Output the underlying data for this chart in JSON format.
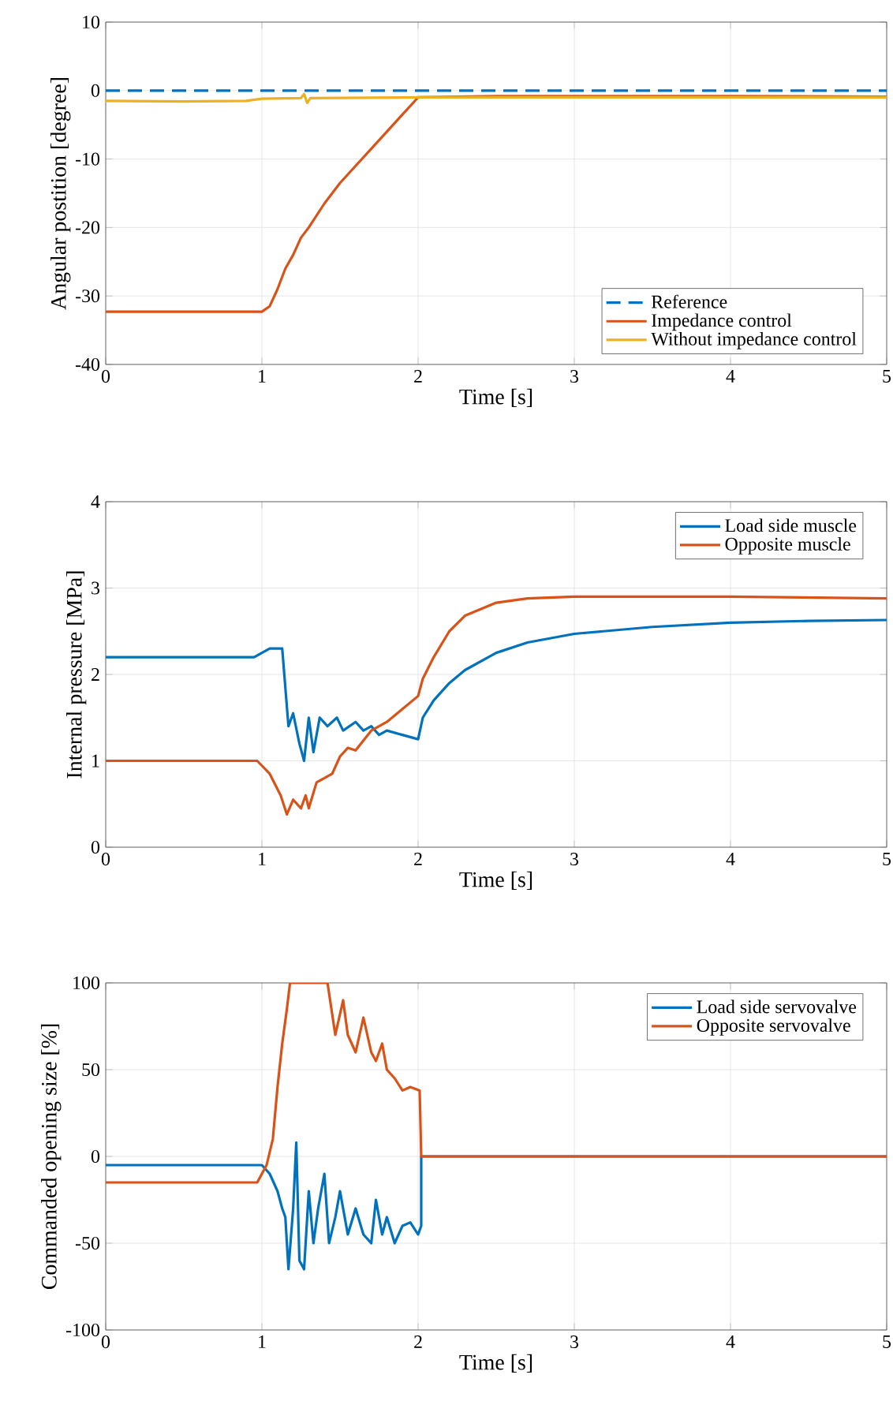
{
  "chart_data": [
    {
      "type": "line",
      "xlabel": "Time [s]",
      "ylabel": "Angular postition [degree]",
      "xlim": [
        0,
        5
      ],
      "ylim": [
        -40,
        10
      ],
      "xticks": [
        0,
        1,
        2,
        3,
        4,
        5
      ],
      "yticks": [
        -40,
        -30,
        -20,
        -10,
        0,
        10
      ],
      "grid": true,
      "legend": "bottom right",
      "series": [
        {
          "name": "Reference",
          "color": "#0072bd",
          "line_style": "dashed",
          "x": [
            0,
            5
          ],
          "values": [
            0,
            0
          ]
        },
        {
          "name": "Impedance control",
          "color": "#d95319",
          "line_style": "solid",
          "x": [
            0,
            1.0,
            1.05,
            1.1,
            1.15,
            1.2,
            1.25,
            1.3,
            1.4,
            1.5,
            1.6,
            1.7,
            1.8,
            1.9,
            2.0,
            2.5,
            3,
            4,
            5
          ],
          "values": [
            -32.3,
            -32.3,
            -31.5,
            -29,
            -26,
            -24,
            -21.5,
            -20,
            -16.5,
            -13.5,
            -11,
            -8.5,
            -6,
            -3.5,
            -1,
            -0.8,
            -0.8,
            -0.8,
            -0.9
          ]
        },
        {
          "name": "Without impedance control",
          "color": "#edb120",
          "line_style": "solid",
          "x": [
            0,
            0.5,
            0.9,
            1.0,
            1.25,
            1.27,
            1.29,
            1.31,
            2,
            3,
            5
          ],
          "values": [
            -1.5,
            -1.6,
            -1.5,
            -1.2,
            -1.1,
            -0.5,
            -1.8,
            -1.1,
            -1,
            -1,
            -1
          ]
        }
      ]
    },
    {
      "type": "line",
      "xlabel": "Time [s]",
      "ylabel": "Internal pressure [MPa]",
      "xlim": [
        0,
        5
      ],
      "ylim": [
        0,
        4
      ],
      "xticks": [
        0,
        1,
        2,
        3,
        4,
        5
      ],
      "yticks": [
        0,
        1,
        2,
        3,
        4
      ],
      "grid": true,
      "legend": "top right",
      "series": [
        {
          "name": "Load side muscle",
          "color": "#0072bd",
          "line_style": "solid",
          "x": [
            0,
            0.95,
            1.05,
            1.13,
            1.17,
            1.2,
            1.24,
            1.27,
            1.3,
            1.33,
            1.37,
            1.42,
            1.48,
            1.52,
            1.6,
            1.65,
            1.7,
            1.75,
            1.8,
            1.9,
            2.0,
            2.03,
            2.1,
            2.2,
            2.3,
            2.5,
            2.7,
            3.0,
            3.5,
            4,
            4.5,
            5
          ],
          "values": [
            2.2,
            2.2,
            2.3,
            2.3,
            1.4,
            1.55,
            1.2,
            1.0,
            1.5,
            1.1,
            1.5,
            1.4,
            1.5,
            1.35,
            1.45,
            1.35,
            1.4,
            1.3,
            1.35,
            1.3,
            1.25,
            1.5,
            1.7,
            1.9,
            2.05,
            2.25,
            2.37,
            2.47,
            2.55,
            2.6,
            2.62,
            2.63
          ]
        },
        {
          "name": "Opposite muscle",
          "color": "#d95319",
          "line_style": "solid",
          "x": [
            0,
            0.97,
            1.05,
            1.12,
            1.16,
            1.2,
            1.25,
            1.28,
            1.3,
            1.35,
            1.4,
            1.45,
            1.5,
            1.55,
            1.6,
            1.7,
            1.8,
            1.9,
            2.0,
            2.03,
            2.1,
            2.2,
            2.3,
            2.5,
            2.7,
            3,
            4,
            5
          ],
          "values": [
            1.0,
            1.0,
            0.85,
            0.6,
            0.38,
            0.55,
            0.45,
            0.6,
            0.45,
            0.75,
            0.8,
            0.85,
            1.05,
            1.15,
            1.12,
            1.35,
            1.45,
            1.6,
            1.75,
            1.95,
            2.2,
            2.5,
            2.68,
            2.83,
            2.88,
            2.9,
            2.9,
            2.88
          ]
        }
      ]
    },
    {
      "type": "line",
      "xlabel": "Time [s]",
      "ylabel": "Commanded opening size [%]",
      "xlim": [
        0,
        5
      ],
      "ylim": [
        -100,
        100
      ],
      "xticks": [
        0,
        1,
        2,
        3,
        4,
        5
      ],
      "yticks": [
        -100,
        -50,
        0,
        50,
        100
      ],
      "grid": true,
      "legend": "top right",
      "series": [
        {
          "name": "Load side servovalve",
          "color": "#0072bd",
          "line_style": "solid",
          "x": [
            0,
            0.95,
            1.0,
            1.05,
            1.1,
            1.13,
            1.15,
            1.17,
            1.2,
            1.22,
            1.24,
            1.27,
            1.3,
            1.33,
            1.36,
            1.4,
            1.43,
            1.47,
            1.5,
            1.55,
            1.6,
            1.65,
            1.7,
            1.73,
            1.77,
            1.8,
            1.85,
            1.9,
            1.95,
            2.0,
            2.02,
            2.02,
            5
          ],
          "values": [
            -5,
            -5,
            -5,
            -10,
            -20,
            -30,
            -35,
            -65,
            -30,
            8,
            -60,
            -65,
            -20,
            -50,
            -30,
            -10,
            -50,
            -35,
            -20,
            -45,
            -30,
            -45,
            -50,
            -25,
            -45,
            -35,
            -50,
            -40,
            -38,
            -45,
            -40,
            0,
            0
          ]
        },
        {
          "name": "Opposite servovalve",
          "color": "#d95319",
          "line_style": "solid",
          "x": [
            0,
            0.97,
            1.03,
            1.07,
            1.1,
            1.13,
            1.16,
            1.18,
            1.42,
            1.47,
            1.52,
            1.55,
            1.6,
            1.65,
            1.7,
            1.73,
            1.77,
            1.8,
            1.85,
            1.9,
            1.95,
            2.01,
            2.02,
            5
          ],
          "values": [
            -15,
            -15,
            -5,
            10,
            40,
            65,
            85,
            100,
            100,
            70,
            90,
            70,
            60,
            80,
            60,
            55,
            65,
            50,
            45,
            38,
            40,
            38,
            0,
            0
          ]
        }
      ]
    }
  ]
}
